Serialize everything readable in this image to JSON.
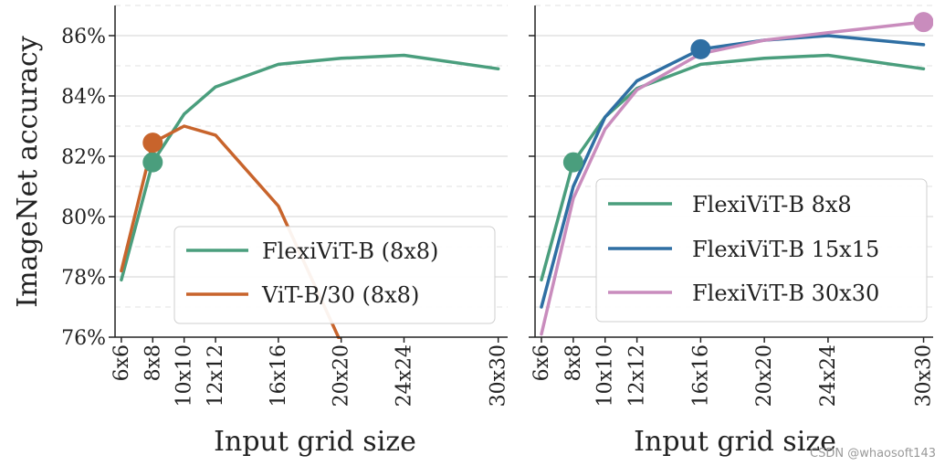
{
  "chart_data": [
    {
      "type": "line",
      "panel": "left",
      "ylabel": "ImageNet accuracy",
      "xlabel": "Input grid size",
      "categories": [
        "6x6",
        "8x8",
        "10x10",
        "12x12",
        "16x16",
        "20x20",
        "24x24",
        "30x30"
      ],
      "x_ticks": [
        6,
        8,
        10,
        12,
        16,
        20,
        24,
        30
      ],
      "xlim": [
        5.6,
        30.6
      ],
      "ylim": [
        76,
        87
      ],
      "y_ticks": [
        76,
        78,
        80,
        82,
        84,
        86
      ],
      "y_tick_labels": [
        "76%",
        "78%",
        "80%",
        "82%",
        "84%",
        "86%"
      ],
      "grid": true,
      "legend_position": "lower-right",
      "series": [
        {
          "name": "FlexiViT-B (8x8)",
          "color": "#4a9e7d",
          "x": [
            6,
            8,
            10,
            12,
            16,
            20,
            24,
            30
          ],
          "values": [
            77.9,
            81.8,
            83.4,
            84.3,
            85.05,
            85.25,
            85.35,
            84.9
          ],
          "marker": {
            "x": 8,
            "y": 81.8
          }
        },
        {
          "name": "ViT-B/30 (8x8)",
          "color": "#c8642c",
          "x": [
            6,
            8,
            10,
            12,
            16,
            20
          ],
          "values": [
            78.2,
            82.45,
            83.0,
            82.7,
            80.35,
            75.8
          ],
          "marker": {
            "x": 8,
            "y": 82.45
          }
        }
      ]
    },
    {
      "type": "line",
      "panel": "right",
      "xlabel": "Input grid size",
      "categories": [
        "6x6",
        "8x8",
        "10x10",
        "12x12",
        "16x16",
        "20x20",
        "24x24",
        "30x30"
      ],
      "x_ticks": [
        6,
        8,
        10,
        12,
        16,
        20,
        24,
        30
      ],
      "xlim": [
        5.6,
        30.6
      ],
      "ylim": [
        76,
        87
      ],
      "grid": true,
      "legend_position": "lower-right",
      "series": [
        {
          "name": "FlexiViT-B 8x8",
          "color": "#4a9e7d",
          "x": [
            6,
            8,
            10,
            12,
            16,
            20,
            24,
            30
          ],
          "values": [
            77.9,
            81.8,
            83.3,
            84.25,
            85.05,
            85.25,
            85.35,
            84.9
          ],
          "marker": {
            "x": 8,
            "y": 81.8
          }
        },
        {
          "name": "FlexiViT-B 15x15",
          "color": "#2f6fa3",
          "x": [
            6,
            8,
            10,
            12,
            16,
            20,
            24,
            30
          ],
          "values": [
            77.0,
            81.0,
            83.3,
            84.5,
            85.55,
            85.85,
            86.0,
            85.7
          ],
          "marker": {
            "x": 16,
            "y": 85.55
          }
        },
        {
          "name": "FlexiViT-B 30x30",
          "color": "#c98cbd",
          "x": [
            6,
            8,
            10,
            12,
            16,
            20,
            24,
            30
          ],
          "values": [
            76.1,
            80.6,
            82.9,
            84.2,
            85.4,
            85.85,
            86.1,
            86.45
          ],
          "marker": {
            "x": 30,
            "y": 86.45
          }
        }
      ]
    }
  ],
  "watermark": "CSDN @whaosoft143"
}
